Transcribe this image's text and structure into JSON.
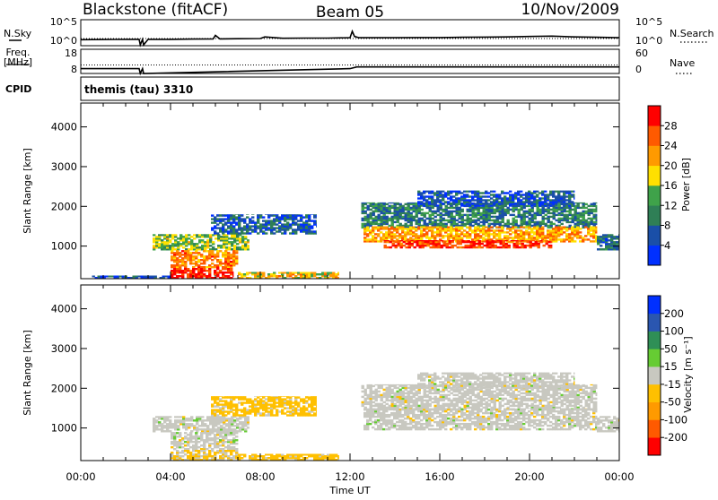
{
  "header": {
    "station": "Blackstone (fitACF)",
    "beam": "Beam 05",
    "date": "10/Nov/2009"
  },
  "noise_panel": {
    "left_label": "N.Sky",
    "left_ticks": [
      "10^5",
      "10^0"
    ],
    "right_label": "N.Search",
    "right_ticks": [
      "10^5",
      "10^0"
    ],
    "series": [
      {
        "name": "N.Sky",
        "style": "solid",
        "x": [
          0,
          1,
          2,
          2.6,
          2.65,
          2.75,
          2.8,
          3,
          4,
          5,
          5.9,
          6.0,
          6.2,
          7,
          8,
          8.2,
          9,
          10,
          11,
          12,
          12.1,
          12.2,
          12.4,
          13,
          14,
          15,
          16,
          17,
          18,
          19,
          20,
          21,
          22,
          23,
          24
        ],
        "y": [
          0.5,
          0.55,
          0.6,
          0.6,
          -0.8,
          0.6,
          -0.8,
          0.6,
          0.6,
          0.65,
          0.7,
          1.6,
          0.7,
          0.75,
          0.8,
          1.2,
          0.85,
          0.9,
          0.9,
          1.0,
          2.6,
          1.3,
          1.0,
          1.0,
          1.0,
          1.05,
          1.05,
          1.1,
          1.15,
          1.2,
          1.3,
          1.4,
          1.2,
          1.1,
          1.0
        ]
      },
      {
        "name": "N.Search",
        "style": "dotted",
        "x": [
          0,
          12.1,
          24
        ],
        "y": [
          0.8,
          0.8,
          0.8
        ]
      }
    ]
  },
  "freq_panel": {
    "left_label": "Freq. [MHz]",
    "left_ticks": [
      "18",
      "8"
    ],
    "right_label": "Nave",
    "right_ticks": [
      "60",
      "0"
    ],
    "series": [
      {
        "name": "Freq",
        "style": "solid",
        "x": [
          0,
          2.6,
          2.65,
          2.75,
          2.8,
          12,
          12.3,
          24
        ],
        "y": [
          10.0,
          10.0,
          8.0,
          10.0,
          8.0,
          10.0,
          10.7,
          10.7
        ]
      },
      {
        "name": "Nave",
        "style": "dotted",
        "x": [
          0,
          24
        ],
        "y": [
          21,
          21
        ]
      }
    ]
  },
  "cpid": {
    "label": "CPID",
    "text": "themis (tau) 3310"
  },
  "chart_data": [
    {
      "type": "heatmap",
      "title": "",
      "xlabel": "",
      "ylabel": "Slant Range [km]",
      "xlim": [
        0,
        24
      ],
      "ylim": [
        180,
        4600
      ],
      "yticks": [
        1000,
        2000,
        3000,
        4000
      ],
      "colorbar": {
        "label": "Power [dB]",
        "ticks": [
          "4",
          "8",
          "12",
          "16",
          "20",
          "24",
          "28"
        ],
        "range": [
          0,
          30
        ],
        "colors": [
          "#0030ff",
          "#1a4fa8",
          "#2f7f56",
          "#3fa24a",
          "#ffe000",
          "#ff9a00",
          "#ff5a00",
          "#ff0000"
        ]
      },
      "regions": [
        {
          "x": [
            3.2,
            7.5
          ],
          "y": [
            900,
            1300
          ],
          "value": 14
        },
        {
          "x": [
            4.0,
            7.0
          ],
          "y": [
            450,
            900
          ],
          "value": 22
        },
        {
          "x": [
            4.0,
            6.8
          ],
          "y": [
            180,
            450
          ],
          "value": 28
        },
        {
          "x": [
            5.8,
            10.5
          ],
          "y": [
            1300,
            1800
          ],
          "value": 6
        },
        {
          "x": [
            7.0,
            11.5
          ],
          "y": [
            180,
            350
          ],
          "value": 18
        },
        {
          "x": [
            0.5,
            4.0
          ],
          "y": [
            180,
            260
          ],
          "value": 5
        },
        {
          "x": [
            12.5,
            23.0
          ],
          "y": [
            1450,
            2100
          ],
          "value": 9
        },
        {
          "x": [
            12.6,
            23.0
          ],
          "y": [
            1100,
            1500
          ],
          "value": 20
        },
        {
          "x": [
            13.5,
            21.0
          ],
          "y": [
            950,
            1150
          ],
          "value": 27
        },
        {
          "x": [
            15.0,
            22.0
          ],
          "y": [
            2000,
            2400
          ],
          "value": 5
        },
        {
          "x": [
            23.0,
            24.0
          ],
          "y": [
            900,
            1300
          ],
          "value": 8
        }
      ]
    },
    {
      "type": "heatmap",
      "title": "",
      "xlabel": "Time UT",
      "ylabel": "Slant Range [km]",
      "xlim": [
        0,
        24
      ],
      "ylim": [
        180,
        4600
      ],
      "xticks": [
        "00:00",
        "04:00",
        "08:00",
        "12:00",
        "16:00",
        "20:00",
        "00:00"
      ],
      "yticks": [
        1000,
        2000,
        3000,
        4000
      ],
      "colorbar": {
        "label": "Velocity [m s⁻¹]",
        "ticks": [
          "200",
          "100",
          "50",
          "15",
          "-15",
          "-50",
          "-100",
          "-200"
        ],
        "range": [
          -250,
          250
        ],
        "colors": [
          "#ff0000",
          "#ff5a00",
          "#ff9a00",
          "#ffc000",
          "#c8c8c0",
          "#66cc33",
          "#2f8f56",
          "#2a56b0",
          "#0030ff"
        ]
      },
      "regions": [
        {
          "x": [
            3.2,
            7.5
          ],
          "y": [
            900,
            1300
          ],
          "value": 0
        },
        {
          "x": [
            4.0,
            7.0
          ],
          "y": [
            450,
            900
          ],
          "value": 0
        },
        {
          "x": [
            4.0,
            7.0
          ],
          "y": [
            180,
            450
          ],
          "value": -30
        },
        {
          "x": [
            5.8,
            10.5
          ],
          "y": [
            1300,
            1800
          ],
          "value": -50
        },
        {
          "x": [
            7.0,
            11.5
          ],
          "y": [
            180,
            350
          ],
          "value": -50
        },
        {
          "x": [
            12.5,
            23.0
          ],
          "y": [
            1450,
            2100
          ],
          "value": 0
        },
        {
          "x": [
            12.6,
            23.0
          ],
          "y": [
            950,
            1500
          ],
          "value": 0
        },
        {
          "x": [
            15.0,
            22.0
          ],
          "y": [
            2000,
            2400
          ],
          "value": 0
        },
        {
          "x": [
            23.0,
            24.0
          ],
          "y": [
            900,
            1300
          ],
          "value": 0
        }
      ]
    }
  ]
}
